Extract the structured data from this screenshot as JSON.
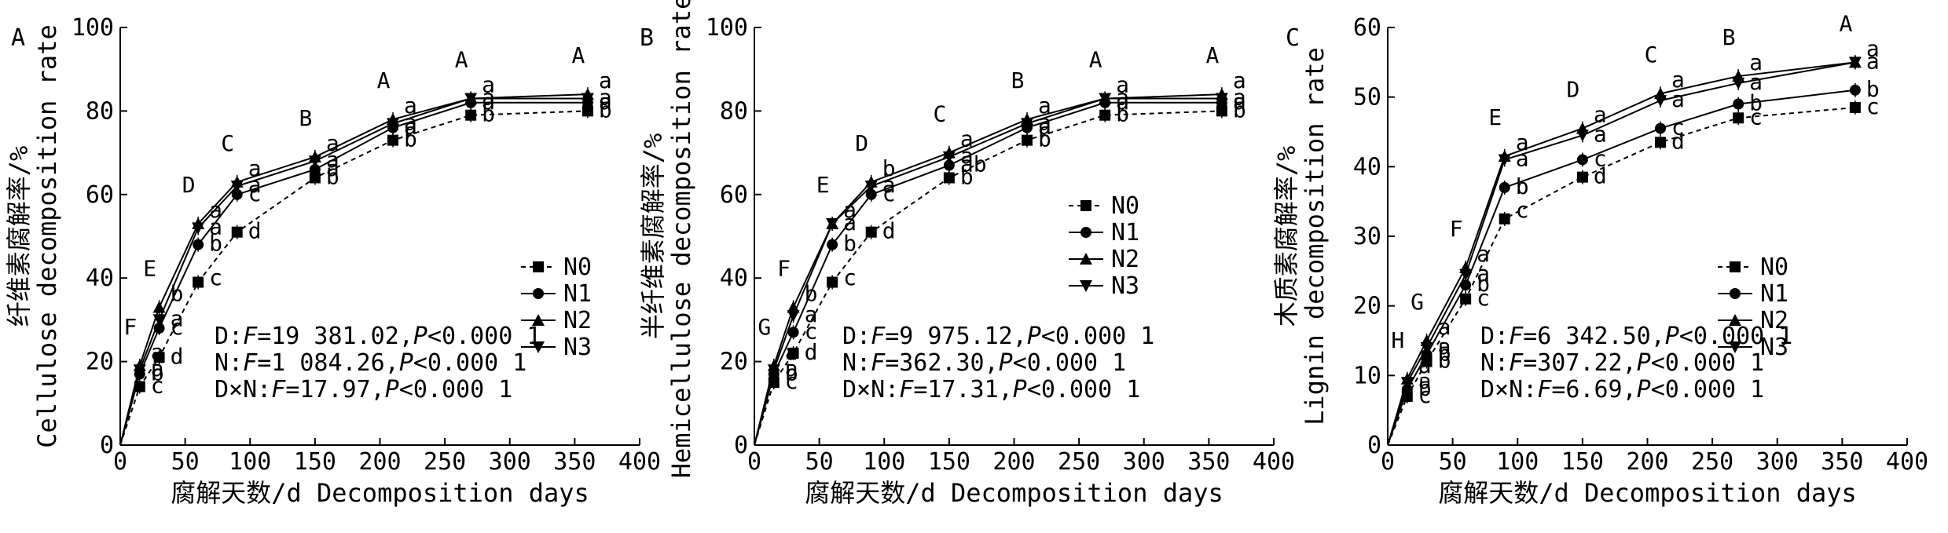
{
  "figure": {
    "panels": [
      "A",
      "B",
      "C"
    ]
  },
  "chart_data": [
    {
      "type": "line",
      "panel": "A",
      "xlabel": "腐解天数/d Decomposition days",
      "ylabel": "纤维素腐解率/% Cellulose decomposition rate",
      "xlim": [
        0,
        400
      ],
      "ylim": [
        0,
        100
      ],
      "xticks": [
        0,
        50,
        100,
        150,
        200,
        250,
        300,
        350,
        400
      ],
      "yticks": [
        0,
        20,
        40,
        60,
        80,
        100
      ],
      "x": [
        0,
        15,
        30,
        60,
        90,
        150,
        210,
        270,
        360
      ],
      "series": [
        {
          "name": "N0",
          "values": [
            0,
            14,
            21,
            39,
            51,
            64,
            73,
            79,
            80
          ]
        },
        {
          "name": "N1",
          "values": [
            0,
            17,
            28,
            48,
            60,
            66,
            76,
            82,
            82
          ]
        },
        {
          "name": "N2",
          "values": [
            0,
            19,
            33,
            53,
            63,
            69,
            78,
            83,
            84
          ]
        },
        {
          "name": "N3",
          "values": [
            0,
            18,
            30,
            52,
            62,
            68,
            77,
            83,
            83
          ]
        }
      ],
      "group_letters": [
        "F",
        "E",
        "D",
        "C",
        "B",
        "A",
        "A",
        "A"
      ],
      "point_letters": [
        [
          "c",
          "b",
          "a",
          "a"
        ],
        [
          "d",
          "c",
          "b",
          "a"
        ],
        [
          "c",
          "b",
          "a",
          "a"
        ],
        [
          "d",
          "c",
          "a",
          "a"
        ],
        [
          "b",
          "a",
          "a",
          "a"
        ],
        [
          "b",
          "a",
          "a",
          "a"
        ],
        [
          "b",
          "a",
          "a",
          "a"
        ],
        [
          "b",
          "a",
          "a",
          "a"
        ]
      ],
      "stats": [
        {
          "prefix": "D:",
          "f": "=19 381.02,",
          "p": "<0.000 1"
        },
        {
          "prefix": "N:",
          "f": "=1 084.26,",
          "p": "<0.000 1"
        },
        {
          "prefix": "D×N:",
          "f": "=17.97,",
          "p": "<0.000 1"
        }
      ],
      "legend": "right-middle"
    },
    {
      "type": "line",
      "panel": "B",
      "xlabel": "腐解天数/d Decomposition days",
      "ylabel": "半纤维素腐解率/% Hemicellulose decomposition rate",
      "xlim": [
        0,
        400
      ],
      "ylim": [
        0,
        100
      ],
      "xticks": [
        0,
        50,
        100,
        150,
        200,
        250,
        300,
        350,
        400
      ],
      "yticks": [
        0,
        20,
        40,
        60,
        80,
        100
      ],
      "x": [
        0,
        15,
        30,
        60,
        90,
        150,
        210,
        270,
        360
      ],
      "series": [
        {
          "name": "N0",
          "values": [
            0,
            15,
            22,
            39,
            51,
            64,
            73,
            79,
            80
          ]
        },
        {
          "name": "N1",
          "values": [
            0,
            17,
            27,
            48,
            60,
            67,
            76,
            82,
            82
          ]
        },
        {
          "name": "N2",
          "values": [
            0,
            19,
            33,
            53,
            63,
            70,
            78,
            83,
            84
          ]
        },
        {
          "name": "N3",
          "values": [
            0,
            18,
            31,
            53,
            62,
            69,
            77,
            83,
            83
          ]
        }
      ],
      "group_letters": [
        "G",
        "F",
        "E",
        "D",
        "C",
        "B",
        "A",
        "A"
      ],
      "point_letters": [
        [
          "c",
          "b",
          "a",
          "a"
        ],
        [
          "d",
          "c",
          "b",
          "a"
        ],
        [
          "c",
          "b",
          "a",
          "a"
        ],
        [
          "d",
          "c",
          "b",
          "a"
        ],
        [
          "b",
          "ab",
          "a",
          "a"
        ],
        [
          "b",
          "a",
          "a",
          "a"
        ],
        [
          "b",
          "a",
          "a",
          "a"
        ],
        [
          "b",
          "a",
          "a",
          "a"
        ]
      ],
      "stats": [
        {
          "prefix": "D:",
          "f": "=9 975.12,",
          "p": "<0.000 1"
        },
        {
          "prefix": "N:",
          "f": "=362.30,",
          "p": "<0.000 1"
        },
        {
          "prefix": "D×N:",
          "f": "=17.31,",
          "p": "<0.000 1"
        }
      ],
      "legend": "right-middle"
    },
    {
      "type": "line",
      "panel": "C",
      "xlabel": "腐解天数/d Decomposition days",
      "ylabel": "木质素腐解率/% Lignin decomposition rate",
      "xlim": [
        0,
        400
      ],
      "ylim": [
        0,
        60
      ],
      "xticks": [
        0,
        50,
        100,
        150,
        200,
        250,
        300,
        350,
        400
      ],
      "yticks": [
        0,
        10,
        20,
        30,
        40,
        50,
        60
      ],
      "x": [
        0,
        15,
        30,
        60,
        90,
        150,
        210,
        270,
        360
      ],
      "series": [
        {
          "name": "N0",
          "values": [
            0,
            7,
            12,
            21,
            32.5,
            38.5,
            43.5,
            47,
            48.5
          ]
        },
        {
          "name": "N1",
          "values": [
            0,
            8,
            13,
            23,
            37,
            41,
            45.5,
            49,
            51
          ]
        },
        {
          "name": "N2",
          "values": [
            0,
            9.5,
            15,
            25.5,
            41.5,
            45.5,
            50.5,
            53,
            55
          ]
        },
        {
          "name": "N3",
          "values": [
            0,
            9,
            14,
            24.5,
            41,
            44.5,
            49.5,
            52,
            55
          ]
        }
      ],
      "group_letters": [
        "H",
        "G",
        "F",
        "E",
        "D",
        "C",
        "B",
        "A"
      ],
      "point_letters": [
        [
          "c",
          "b",
          "a",
          "a"
        ],
        [
          "b",
          "b",
          "a",
          "a"
        ],
        [
          "c",
          "b",
          "a",
          "a"
        ],
        [
          "c",
          "b",
          "a",
          "a"
        ],
        [
          "d",
          "c",
          "a",
          "a"
        ],
        [
          "d",
          "c",
          "a",
          "a"
        ],
        [
          "c",
          "b",
          "a",
          "a"
        ],
        [
          "c",
          "b",
          "a",
          "a"
        ]
      ],
      "stats": [
        {
          "prefix": "D:",
          "f": "=6 342.50,",
          "p": "<0.000 1"
        },
        {
          "prefix": "N:",
          "f": "=307.22,",
          "p": "<0.000 1"
        },
        {
          "prefix": "D×N:",
          "f": "=6.69,",
          "p": "<0.000 1"
        }
      ],
      "legend": "right-middle"
    }
  ]
}
